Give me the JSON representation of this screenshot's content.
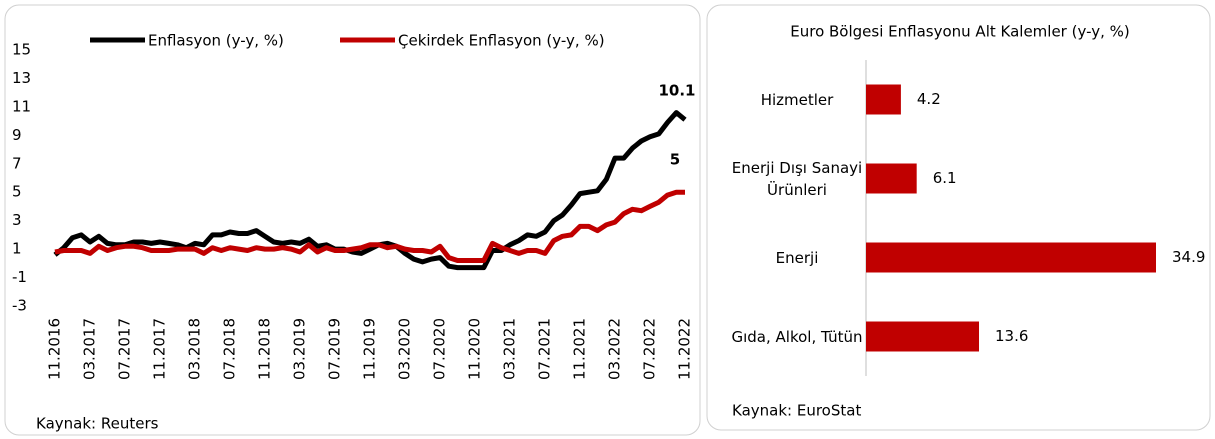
{
  "chart_data": [
    {
      "type": "line",
      "categories": [
        "11.2016",
        null,
        null,
        null,
        "03.2017",
        null,
        null,
        null,
        "07.2017",
        null,
        null,
        null,
        "11.2017",
        null,
        null,
        null,
        "03.2018",
        null,
        null,
        null,
        "07.2018",
        null,
        null,
        null,
        "11.2018",
        null,
        null,
        null,
        "03.2019",
        null,
        null,
        null,
        "07.2019",
        null,
        null,
        null,
        "11.2019",
        null,
        null,
        null,
        "03.2020",
        null,
        null,
        null,
        "07.2020",
        null,
        null,
        null,
        "11.2020",
        null,
        null,
        null,
        "03.2021",
        null,
        null,
        null,
        "07.2021",
        null,
        null,
        null,
        "11.2021",
        null,
        null,
        null,
        "03.2022",
        null,
        null,
        null,
        "07.2022",
        null,
        null,
        null,
        "11.2022"
      ],
      "series": [
        {
          "name": "Enflasyon (y-y, %)",
          "color": "#000000",
          "values": [
            0.6,
            1.1,
            1.8,
            2.0,
            1.5,
            1.9,
            1.4,
            1.3,
            1.3,
            1.5,
            1.5,
            1.4,
            1.5,
            1.4,
            1.3,
            1.1,
            1.4,
            1.3,
            2.0,
            2.0,
            2.2,
            2.1,
            2.1,
            2.3,
            1.9,
            1.5,
            1.4,
            1.5,
            1.4,
            1.7,
            1.2,
            1.3,
            1.0,
            1.0,
            0.8,
            0.7,
            1.0,
            1.3,
            1.4,
            1.2,
            0.7,
            0.3,
            0.1,
            0.3,
            0.4,
            -0.2,
            -0.3,
            -0.3,
            -0.3,
            -0.3,
            0.9,
            0.9,
            1.3,
            1.6,
            2.0,
            1.9,
            2.2,
            3.0,
            3.4,
            4.1,
            4.9,
            5.0,
            5.1,
            5.9,
            7.4,
            7.4,
            8.1,
            8.6,
            8.9,
            9.1,
            9.9,
            10.6,
            10.1
          ]
        },
        {
          "name": "Çekirdek Enflasyon (y-y, %)",
          "color": "#c00000",
          "values": [
            0.8,
            0.9,
            0.9,
            0.9,
            0.7,
            1.2,
            0.9,
            1.1,
            1.2,
            1.2,
            1.1,
            0.9,
            0.9,
            0.9,
            1.0,
            1.0,
            1.0,
            0.7,
            1.1,
            0.9,
            1.1,
            1.0,
            0.9,
            1.1,
            1.0,
            1.0,
            1.1,
            1.0,
            0.8,
            1.3,
            0.8,
            1.1,
            0.9,
            0.9,
            1.0,
            1.1,
            1.3,
            1.3,
            1.1,
            1.2,
            1.0,
            0.9,
            0.9,
            0.8,
            1.2,
            0.4,
            0.2,
            0.2,
            0.2,
            0.2,
            1.4,
            1.1,
            0.9,
            0.7,
            0.9,
            0.9,
            0.7,
            1.6,
            1.9,
            2.0,
            2.6,
            2.6,
            2.3,
            2.7,
            2.9,
            3.5,
            3.8,
            3.7,
            4.0,
            4.3,
            4.8,
            5.0,
            5.0
          ]
        }
      ],
      "ylim": [
        -3,
        15
      ],
      "yticks": [
        -3,
        -1,
        1,
        3,
        5,
        7,
        9,
        11,
        13,
        15
      ],
      "annotations": [
        "10.1",
        "5"
      ],
      "source": "Kaynak: Reuters"
    },
    {
      "type": "hbar",
      "title": "Euro Bölgesi Enflasyonu Alt Kalemler (y-y, %)",
      "categories": [
        "Hizmetler",
        "Enerji Dışı Sanayi Ürünleri",
        "Enerji",
        "Gıda, Alkol, Tütün"
      ],
      "values": [
        4.2,
        6.1,
        34.9,
        13.6
      ],
      "color": "#c00000",
      "source": "Kaynak: EuroStat"
    }
  ]
}
